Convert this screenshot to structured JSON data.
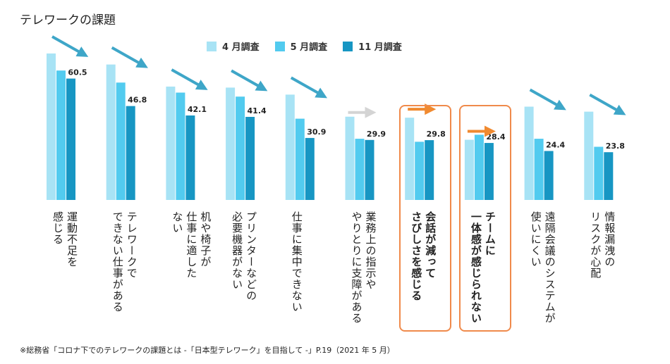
{
  "chart_data": {
    "type": "bar",
    "title": "テレワークの課題",
    "categories": [
      "運動不足を感じる",
      "テレワークで\nできない仕事がある",
      "机や椅子が\n仕事に適した\nない",
      "プリンターなどの\n必要機器がない",
      "仕事に集中できない",
      "業務上の指示や\nやりとりに支障がある",
      "会話が減って\nさびしさを感じる",
      "チームに\n一体感が感じられない",
      "遠隔会議のシステムが\n使いにくい",
      "情報漏洩の\nリスクが心配"
    ],
    "series": [
      {
        "name": "4 月調査",
        "values": [
          73.0,
          67.5,
          56.5,
          56.0,
          52.5,
          41.5,
          41.0,
          30.0,
          46.5,
          44.0
        ],
        "color": "#a8e3f5"
      },
      {
        "name": "5 月調査",
        "values": [
          64.5,
          58.5,
          53.5,
          51.5,
          40.5,
          30.5,
          29.0,
          32.5,
          30.5,
          26.5
        ],
        "color": "#52cbef"
      },
      {
        "name": "11 月調査",
        "values": [
          60.5,
          46.8,
          42.1,
          41.4,
          30.9,
          29.9,
          29.8,
          28.4,
          24.4,
          23.8
        ],
        "color": "#1796c3"
      }
    ],
    "data_labels": [
      "60.5",
      "46.8",
      "42.1",
      "41.4",
      "30.9",
      "29.9",
      "29.8",
      "28.4",
      "24.4",
      "23.8"
    ],
    "trend_arrows": [
      "down",
      "down",
      "down",
      "down",
      "down",
      "flat",
      "flat",
      "flat",
      "down",
      "down"
    ],
    "highlighted_categories": [
      6,
      7
    ],
    "ylim": [
      0,
      80
    ],
    "colors": {
      "arrow_down": "#3ea6c8",
      "arrow_flat_gray": "#d4d4d4",
      "arrow_flat_orange": "#f08a30",
      "highlight_border": "#f08a4b"
    }
  },
  "vertical_labels": [
    "運動不足を\n感じる",
    "テレワークで\nできない仕事がある",
    "机や椅子が\n仕事に適した\nない",
    "プリンターなどの\n必要機器がない",
    "仕事に集中できない",
    "業務上の指示や\nやりとりに支障がある",
    "会話が減って\nさびしさを感じる",
    "チームに\n一体感が感じられない",
    "遠隔会議のシステムが\n使いにくい",
    "情報漏洩の\nリスクが心配"
  ],
  "source_note": "※総務省「コロナ下でのテレワークの課題とは -「日本型テレワーク」を目指して -」P.19（2021 年 5 月）"
}
